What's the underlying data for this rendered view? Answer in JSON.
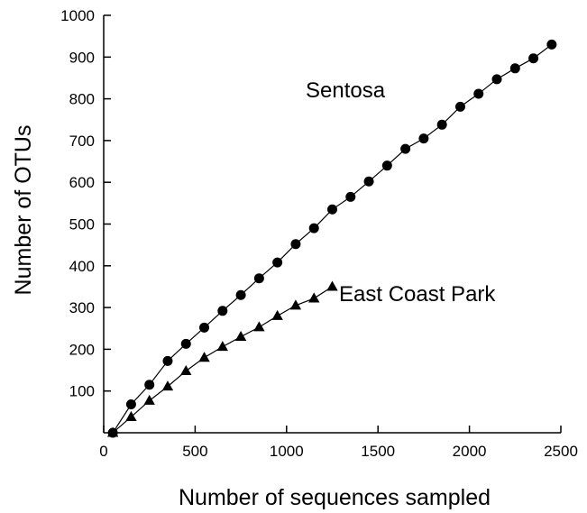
{
  "chart_data": {
    "type": "line",
    "xlabel": "Number of sequences sampled",
    "ylabel": "Number of OTUs",
    "xlim": [
      0,
      2500
    ],
    "ylim": [
      0,
      1000
    ],
    "xticks": [
      0,
      500,
      1000,
      1500,
      2000,
      2500
    ],
    "yticks": [
      100,
      200,
      300,
      400,
      500,
      600,
      700,
      800,
      900,
      1000
    ],
    "grid": false,
    "series": [
      {
        "name": "Sentosa",
        "marker": "circle",
        "x": [
          50,
          150,
          250,
          350,
          450,
          550,
          650,
          750,
          850,
          950,
          1050,
          1150,
          1250,
          1350,
          1450,
          1550,
          1650,
          1750,
          1850,
          1950,
          2050,
          2150,
          2250,
          2350,
          2450
        ],
        "y": [
          0,
          68,
          115,
          172,
          213,
          252,
          292,
          330,
          370,
          408,
          452,
          490,
          535,
          565,
          602,
          640,
          680,
          705,
          738,
          781,
          812,
          847,
          873,
          897,
          930
        ]
      },
      {
        "name": "East Coast Park",
        "marker": "triangle",
        "x": [
          50,
          150,
          250,
          350,
          450,
          550,
          650,
          750,
          850,
          950,
          1050,
          1150,
          1250
        ],
        "y": [
          0,
          38,
          77,
          111,
          148,
          180,
          206,
          230,
          253,
          280,
          305,
          322,
          350
        ]
      }
    ]
  }
}
